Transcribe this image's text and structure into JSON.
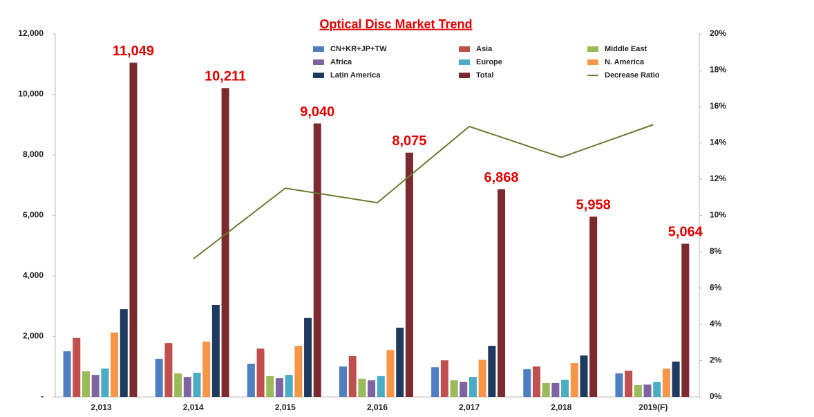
{
  "chart_data": {
    "type": "bar",
    "title": "Optical Disc Market Trend",
    "categories": [
      "2,013",
      "2,014",
      "2,015",
      "2,016",
      "2,017",
      "2,018",
      "2019(F)"
    ],
    "series": [
      {
        "name": "CN+KR+JP+TW",
        "color": "#4f7fc0",
        "values": [
          1510,
          1260,
          1100,
          1010,
          980,
          920,
          780
        ]
      },
      {
        "name": "Asia",
        "color": "#c0504d",
        "values": [
          1950,
          1780,
          1600,
          1350,
          1210,
          1010,
          870
        ]
      },
      {
        "name": "Middle East",
        "color": "#9bbb59",
        "values": [
          850,
          780,
          690,
          600,
          550,
          460,
          390
        ]
      },
      {
        "name": "Africa",
        "color": "#8064a2",
        "values": [
          730,
          660,
          620,
          550,
          500,
          460,
          410
        ]
      },
      {
        "name": "Europe",
        "color": "#4bacc6",
        "values": [
          940,
          800,
          730,
          690,
          660,
          570,
          500
        ]
      },
      {
        "name": "N. America",
        "color": "#f79646",
        "values": [
          2130,
          1830,
          1690,
          1550,
          1230,
          1120,
          940
        ]
      },
      {
        "name": "Latin America",
        "color": "#1f3a5f",
        "values": [
          2900,
          3040,
          2610,
          2290,
          1690,
          1370,
          1170
        ]
      },
      {
        "name": "Total",
        "color": "#7b2a2e",
        "values": [
          11049,
          10211,
          9040,
          8075,
          6868,
          5958,
          5064
        ],
        "value_labels": [
          "11,049",
          "10,211",
          "9,040",
          "8,075",
          "6,868",
          "5,958",
          "5,064"
        ]
      },
      {
        "name": "Decrease Ratio",
        "color": "#6b7a2e",
        "type": "line",
        "axis": "y2",
        "values": [
          null,
          7.6,
          11.5,
          10.7,
          14.9,
          13.2,
          15.0
        ]
      }
    ],
    "ylim": [
      0,
      12000
    ],
    "yticks": [
      {
        "value": 0,
        "label": "-"
      },
      {
        "value": 2000,
        "label": "2,000"
      },
      {
        "value": 4000,
        "label": "4,000"
      },
      {
        "value": 6000,
        "label": "6,000"
      },
      {
        "value": 8000,
        "label": "8,000"
      },
      {
        "value": 10000,
        "label": "10,000"
      },
      {
        "value": 12000,
        "label": "12,000"
      }
    ],
    "y2lim": [
      0,
      20
    ],
    "y2ticks": [
      {
        "value": 0,
        "label": "0%"
      },
      {
        "value": 2,
        "label": "2%"
      },
      {
        "value": 4,
        "label": "4%"
      },
      {
        "value": 6,
        "label": "6%"
      },
      {
        "value": 8,
        "label": "8%"
      },
      {
        "value": 10,
        "label": "10%"
      },
      {
        "value": 12,
        "label": "12%"
      },
      {
        "value": 14,
        "label": "14%"
      },
      {
        "value": 16,
        "label": "16%"
      },
      {
        "value": 18,
        "label": "18%"
      },
      {
        "value": 20,
        "label": "20%"
      }
    ]
  }
}
